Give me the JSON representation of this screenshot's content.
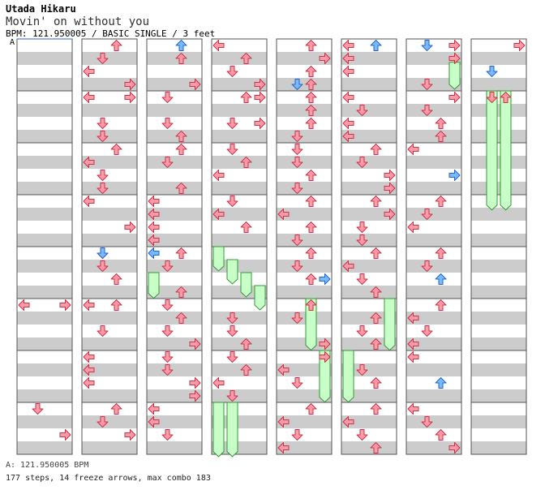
{
  "header": {
    "artist": "Utada Hikaru",
    "title": "Movin' on without you",
    "info": "BPM: 121.950005 / BASIC SINGLE / 3 feet",
    "marker": "A"
  },
  "footer": {
    "bpm_line": "A: 121.950005 BPM",
    "stats_line": "177 steps, 14 freeze arrows, max combo 183"
  },
  "colors": {
    "normal": "#ff9aa8",
    "normal_stroke": "#cc3344",
    "blue": "#7ab8ff",
    "blue_stroke": "#2266cc",
    "freeze": "#c8ffc8",
    "freeze_stroke": "#339933",
    "stripe": "#cccccc"
  },
  "chart_data": {
    "type": "step-chart",
    "columns": 8,
    "measures_per_column": 8,
    "lanes": [
      "left",
      "down",
      "up",
      "right"
    ],
    "notes": [
      {
        "col": 0,
        "m": 5,
        "b": 0,
        "lane": "left"
      },
      {
        "col": 0,
        "m": 5,
        "b": 0,
        "lane": "right"
      },
      {
        "col": 0,
        "m": 7,
        "b": 0,
        "lane": "down"
      },
      {
        "col": 0,
        "m": 7,
        "b": 2,
        "lane": "right"
      },
      {
        "col": 1,
        "m": 0,
        "b": 0,
        "lane": "up"
      },
      {
        "col": 1,
        "m": 0,
        "b": 1,
        "lane": "down"
      },
      {
        "col": 1,
        "m": 0,
        "b": 2,
        "lane": "left"
      },
      {
        "col": 1,
        "m": 0,
        "b": 3,
        "lane": "right"
      },
      {
        "col": 1,
        "m": 1,
        "b": 0,
        "lane": "left"
      },
      {
        "col": 1,
        "m": 1,
        "b": 0,
        "lane": "right"
      },
      {
        "col": 1,
        "m": 1,
        "b": 2,
        "lane": "down"
      },
      {
        "col": 1,
        "m": 1,
        "b": 3,
        "lane": "down"
      },
      {
        "col": 1,
        "m": 2,
        "b": 0,
        "lane": "up"
      },
      {
        "col": 1,
        "m": 2,
        "b": 1,
        "lane": "left"
      },
      {
        "col": 1,
        "m": 2,
        "b": 2,
        "lane": "down"
      },
      {
        "col": 1,
        "m": 2,
        "b": 3,
        "lane": "down"
      },
      {
        "col": 1,
        "m": 3,
        "b": 0,
        "lane": "left"
      },
      {
        "col": 1,
        "m": 3,
        "b": 2,
        "lane": "right"
      },
      {
        "col": 1,
        "m": 4,
        "b": 0,
        "lane": "down"
      },
      {
        "col": 1,
        "m": 4,
        "b": 0,
        "lane": "down",
        "blue": true
      },
      {
        "col": 1,
        "m": 4,
        "b": 1,
        "lane": "down"
      },
      {
        "col": 1,
        "m": 4,
        "b": 2,
        "lane": "up"
      },
      {
        "col": 1,
        "m": 5,
        "b": 0,
        "lane": "up"
      },
      {
        "col": 1,
        "m": 5,
        "b": 0,
        "lane": "left"
      },
      {
        "col": 1,
        "m": 5,
        "b": 2,
        "lane": "down"
      },
      {
        "col": 1,
        "m": 6,
        "b": 0,
        "lane": "left"
      },
      {
        "col": 1,
        "m": 6,
        "b": 1,
        "lane": "left"
      },
      {
        "col": 1,
        "m": 6,
        "b": 2,
        "lane": "left"
      },
      {
        "col": 1,
        "m": 7,
        "b": 0,
        "lane": "up"
      },
      {
        "col": 1,
        "m": 7,
        "b": 1,
        "lane": "down"
      },
      {
        "col": 1,
        "m": 7,
        "b": 2,
        "lane": "right"
      },
      {
        "col": 2,
        "m": 0,
        "b": 0,
        "lane": "up",
        "blue": true
      },
      {
        "col": 2,
        "m": 0,
        "b": 1,
        "lane": "up"
      },
      {
        "col": 2,
        "m": 0,
        "b": 3,
        "lane": "right"
      },
      {
        "col": 2,
        "m": 1,
        "b": 0,
        "lane": "down"
      },
      {
        "col": 2,
        "m": 1,
        "b": 2,
        "lane": "down"
      },
      {
        "col": 2,
        "m": 1,
        "b": 3,
        "lane": "up"
      },
      {
        "col": 2,
        "m": 2,
        "b": 0,
        "lane": "up"
      },
      {
        "col": 2,
        "m": 2,
        "b": 1,
        "lane": "down"
      },
      {
        "col": 2,
        "m": 2,
        "b": 3,
        "lane": "up"
      },
      {
        "col": 2,
        "m": 3,
        "b": 0,
        "lane": "left"
      },
      {
        "col": 2,
        "m": 3,
        "b": 1,
        "lane": "left"
      },
      {
        "col": 2,
        "m": 3,
        "b": 2,
        "lane": "left"
      },
      {
        "col": 2,
        "m": 3,
        "b": 3,
        "lane": "left"
      },
      {
        "col": 2,
        "m": 4,
        "b": 0,
        "lane": "up"
      },
      {
        "col": 2,
        "m": 4,
        "b": 0,
        "lane": "left",
        "blue": true
      },
      {
        "col": 2,
        "m": 4,
        "b": 1,
        "lane": "down"
      },
      {
        "col": 2,
        "m": 4,
        "b": 3,
        "lane": "up"
      },
      {
        "col": 2,
        "m": 5,
        "b": 0,
        "lane": "down"
      },
      {
        "col": 2,
        "m": 5,
        "b": 1,
        "lane": "up"
      },
      {
        "col": 2,
        "m": 5,
        "b": 2,
        "lane": "down"
      },
      {
        "col": 2,
        "m": 5,
        "b": 3,
        "lane": "right"
      },
      {
        "col": 2,
        "m": 6,
        "b": 0,
        "lane": "down"
      },
      {
        "col": 2,
        "m": 6,
        "b": 1,
        "lane": "down"
      },
      {
        "col": 2,
        "m": 6,
        "b": 2,
        "lane": "right"
      },
      {
        "col": 2,
        "m": 6,
        "b": 3,
        "lane": "right"
      },
      {
        "col": 2,
        "m": 7,
        "b": 0,
        "lane": "left"
      },
      {
        "col": 2,
        "m": 7,
        "b": 1,
        "lane": "left"
      },
      {
        "col": 2,
        "m": 7,
        "b": 2,
        "lane": "down"
      },
      {
        "col": 3,
        "m": 0,
        "b": 0,
        "lane": "left"
      },
      {
        "col": 3,
        "m": 0,
        "b": 1,
        "lane": "up"
      },
      {
        "col": 3,
        "m": 0,
        "b": 2,
        "lane": "down"
      },
      {
        "col": 3,
        "m": 0,
        "b": 3,
        "lane": "right"
      },
      {
        "col": 3,
        "m": 1,
        "b": 0,
        "lane": "up"
      },
      {
        "col": 3,
        "m": 1,
        "b": 0,
        "lane": "right"
      },
      {
        "col": 3,
        "m": 1,
        "b": 2,
        "lane": "down"
      },
      {
        "col": 3,
        "m": 1,
        "b": 2,
        "lane": "right"
      },
      {
        "col": 3,
        "m": 2,
        "b": 0,
        "lane": "down"
      },
      {
        "col": 3,
        "m": 2,
        "b": 1,
        "lane": "up"
      },
      {
        "col": 3,
        "m": 2,
        "b": 2,
        "lane": "left"
      },
      {
        "col": 3,
        "m": 3,
        "b": 0,
        "lane": "down"
      },
      {
        "col": 3,
        "m": 3,
        "b": 1,
        "lane": "left"
      },
      {
        "col": 3,
        "m": 3,
        "b": 2,
        "lane": "up"
      },
      {
        "col": 3,
        "m": 5,
        "b": 1,
        "lane": "down"
      },
      {
        "col": 3,
        "m": 5,
        "b": 2,
        "lane": "down"
      },
      {
        "col": 3,
        "m": 5,
        "b": 3,
        "lane": "up"
      },
      {
        "col": 3,
        "m": 6,
        "b": 0,
        "lane": "down"
      },
      {
        "col": 3,
        "m": 6,
        "b": 1,
        "lane": "up"
      },
      {
        "col": 3,
        "m": 6,
        "b": 2,
        "lane": "left"
      },
      {
        "col": 3,
        "m": 6,
        "b": 3,
        "lane": "down"
      },
      {
        "col": 4,
        "m": 0,
        "b": 0,
        "lane": "up"
      },
      {
        "col": 4,
        "m": 0,
        "b": 1,
        "lane": "right"
      },
      {
        "col": 4,
        "m": 0,
        "b": 2,
        "lane": "up"
      },
      {
        "col": 4,
        "m": 0,
        "b": 3,
        "lane": "down",
        "blue": true
      },
      {
        "col": 4,
        "m": 0,
        "b": 3,
        "lane": "up"
      },
      {
        "col": 4,
        "m": 1,
        "b": 0,
        "lane": "up"
      },
      {
        "col": 4,
        "m": 1,
        "b": 1,
        "lane": "up"
      },
      {
        "col": 4,
        "m": 1,
        "b": 2,
        "lane": "up"
      },
      {
        "col": 4,
        "m": 1,
        "b": 3,
        "lane": "down"
      },
      {
        "col": 4,
        "m": 2,
        "b": 0,
        "lane": "down"
      },
      {
        "col": 4,
        "m": 2,
        "b": 1,
        "lane": "down"
      },
      {
        "col": 4,
        "m": 2,
        "b": 2,
        "lane": "up"
      },
      {
        "col": 4,
        "m": 2,
        "b": 3,
        "lane": "down"
      },
      {
        "col": 4,
        "m": 3,
        "b": 0,
        "lane": "up"
      },
      {
        "col": 4,
        "m": 3,
        "b": 1,
        "lane": "left"
      },
      {
        "col": 4,
        "m": 3,
        "b": 2,
        "lane": "up"
      },
      {
        "col": 4,
        "m": 3,
        "b": 3,
        "lane": "down"
      },
      {
        "col": 4,
        "m": 4,
        "b": 0,
        "lane": "up"
      },
      {
        "col": 4,
        "m": 4,
        "b": 1,
        "lane": "down"
      },
      {
        "col": 4,
        "m": 4,
        "b": 2,
        "lane": "right",
        "blue": true
      },
      {
        "col": 4,
        "m": 4,
        "b": 2,
        "lane": "up"
      },
      {
        "col": 4,
        "m": 5,
        "b": 0,
        "lane": "up"
      },
      {
        "col": 4,
        "m": 5,
        "b": 1,
        "lane": "down"
      },
      {
        "col": 4,
        "m": 5,
        "b": 3,
        "lane": "right"
      },
      {
        "col": 4,
        "m": 6,
        "b": 0,
        "lane": "right"
      },
      {
        "col": 4,
        "m": 6,
        "b": 1,
        "lane": "left"
      },
      {
        "col": 4,
        "m": 6,
        "b": 2,
        "lane": "down"
      },
      {
        "col": 4,
        "m": 7,
        "b": 0,
        "lane": "up"
      },
      {
        "col": 4,
        "m": 7,
        "b": 1,
        "lane": "left"
      },
      {
        "col": 4,
        "m": 7,
        "b": 2,
        "lane": "down"
      },
      {
        "col": 4,
        "m": 7,
        "b": 3,
        "lane": "left"
      },
      {
        "col": 5,
        "m": 0,
        "b": 0,
        "lane": "left"
      },
      {
        "col": 5,
        "m": 0,
        "b": 0,
        "lane": "up",
        "blue": true
      },
      {
        "col": 5,
        "m": 0,
        "b": 1,
        "lane": "left"
      },
      {
        "col": 5,
        "m": 0,
        "b": 2,
        "lane": "left"
      },
      {
        "col": 5,
        "m": 1,
        "b": 0,
        "lane": "left"
      },
      {
        "col": 5,
        "m": 1,
        "b": 1,
        "lane": "down"
      },
      {
        "col": 5,
        "m": 1,
        "b": 2,
        "lane": "left"
      },
      {
        "col": 5,
        "m": 1,
        "b": 3,
        "lane": "left"
      },
      {
        "col": 5,
        "m": 2,
        "b": 0,
        "lane": "up"
      },
      {
        "col": 5,
        "m": 2,
        "b": 1,
        "lane": "down"
      },
      {
        "col": 5,
        "m": 2,
        "b": 2,
        "lane": "right"
      },
      {
        "col": 5,
        "m": 2,
        "b": 3,
        "lane": "right"
      },
      {
        "col": 5,
        "m": 3,
        "b": 0,
        "lane": "up"
      },
      {
        "col": 5,
        "m": 3,
        "b": 1,
        "lane": "right"
      },
      {
        "col": 5,
        "m": 3,
        "b": 2,
        "lane": "down"
      },
      {
        "col": 5,
        "m": 3,
        "b": 3,
        "lane": "down"
      },
      {
        "col": 5,
        "m": 4,
        "b": 0,
        "lane": "up"
      },
      {
        "col": 5,
        "m": 4,
        "b": 1,
        "lane": "left"
      },
      {
        "col": 5,
        "m": 4,
        "b": 2,
        "lane": "down"
      },
      {
        "col": 5,
        "m": 4,
        "b": 3,
        "lane": "up"
      },
      {
        "col": 5,
        "m": 5,
        "b": 1,
        "lane": "up"
      },
      {
        "col": 5,
        "m": 5,
        "b": 2,
        "lane": "down"
      },
      {
        "col": 5,
        "m": 5,
        "b": 3,
        "lane": "up"
      },
      {
        "col": 5,
        "m": 6,
        "b": 1,
        "lane": "down"
      },
      {
        "col": 5,
        "m": 6,
        "b": 2,
        "lane": "up"
      },
      {
        "col": 5,
        "m": 7,
        "b": 0,
        "lane": "up"
      },
      {
        "col": 5,
        "m": 7,
        "b": 1,
        "lane": "left"
      },
      {
        "col": 5,
        "m": 7,
        "b": 2,
        "lane": "down"
      },
      {
        "col": 5,
        "m": 7,
        "b": 3,
        "lane": "up"
      },
      {
        "col": 6,
        "m": 0,
        "b": 0,
        "lane": "down",
        "blue": true
      },
      {
        "col": 6,
        "m": 0,
        "b": 0,
        "lane": "right"
      },
      {
        "col": 6,
        "m": 0,
        "b": 1,
        "lane": "right"
      },
      {
        "col": 6,
        "m": 0,
        "b": 3,
        "lane": "down"
      },
      {
        "col": 6,
        "m": 1,
        "b": 0,
        "lane": "right"
      },
      {
        "col": 6,
        "m": 1,
        "b": 1,
        "lane": "down"
      },
      {
        "col": 6,
        "m": 1,
        "b": 2,
        "lane": "up"
      },
      {
        "col": 6,
        "m": 1,
        "b": 3,
        "lane": "up"
      },
      {
        "col": 6,
        "m": 2,
        "b": 0,
        "lane": "left"
      },
      {
        "col": 6,
        "m": 2,
        "b": 2,
        "lane": "right",
        "blue": true
      },
      {
        "col": 6,
        "m": 3,
        "b": 0,
        "lane": "up"
      },
      {
        "col": 6,
        "m": 3,
        "b": 1,
        "lane": "down"
      },
      {
        "col": 6,
        "m": 3,
        "b": 2,
        "lane": "left"
      },
      {
        "col": 6,
        "m": 4,
        "b": 0,
        "lane": "up"
      },
      {
        "col": 6,
        "m": 4,
        "b": 1,
        "lane": "down"
      },
      {
        "col": 6,
        "m": 4,
        "b": 2,
        "lane": "up",
        "blue": true
      },
      {
        "col": 6,
        "m": 5,
        "b": 0,
        "lane": "up"
      },
      {
        "col": 6,
        "m": 5,
        "b": 1,
        "lane": "left"
      },
      {
        "col": 6,
        "m": 5,
        "b": 2,
        "lane": "down"
      },
      {
        "col": 6,
        "m": 5,
        "b": 3,
        "lane": "left"
      },
      {
        "col": 6,
        "m": 6,
        "b": 0,
        "lane": "left"
      },
      {
        "col": 6,
        "m": 6,
        "b": 2,
        "lane": "up",
        "blue": true
      },
      {
        "col": 6,
        "m": 7,
        "b": 0,
        "lane": "left"
      },
      {
        "col": 6,
        "m": 7,
        "b": 1,
        "lane": "down"
      },
      {
        "col": 6,
        "m": 7,
        "b": 2,
        "lane": "up"
      },
      {
        "col": 6,
        "m": 7,
        "b": 3,
        "lane": "right"
      },
      {
        "col": 7,
        "m": 0,
        "b": 0,
        "lane": "right"
      },
      {
        "col": 7,
        "m": 0,
        "b": 2,
        "lane": "down",
        "blue": true
      },
      {
        "col": 7,
        "m": 1,
        "b": 0,
        "lane": "down"
      },
      {
        "col": 7,
        "m": 1,
        "b": 0,
        "lane": "up"
      }
    ],
    "freezes": [
      {
        "col": 2,
        "lane": "left",
        "start": [
          4,
          2
        ],
        "end": [
          4,
          3.6
        ]
      },
      {
        "col": 3,
        "lane": "left",
        "start": [
          4,
          0
        ],
        "end": [
          4,
          1.5
        ]
      },
      {
        "col": 3,
        "lane": "down",
        "start": [
          4,
          1
        ],
        "end": [
          4,
          2.5
        ]
      },
      {
        "col": 3,
        "lane": "up",
        "start": [
          4,
          2
        ],
        "end": [
          4,
          3.5
        ]
      },
      {
        "col": 3,
        "lane": "right",
        "start": [
          4,
          3
        ],
        "end": [
          5,
          0.5
        ]
      },
      {
        "col": 3,
        "lane": "left",
        "start": [
          7,
          0
        ],
        "end": [
          7,
          3.8
        ]
      },
      {
        "col": 3,
        "lane": "down",
        "start": [
          7,
          0
        ],
        "end": [
          7,
          3.8
        ]
      },
      {
        "col": 4,
        "lane": "up",
        "start": [
          5,
          0
        ],
        "end": [
          5,
          3.6
        ]
      },
      {
        "col": 4,
        "lane": "right",
        "start": [
          6,
          0
        ],
        "end": [
          6,
          3.6
        ]
      },
      {
        "col": 5,
        "lane": "left",
        "start": [
          6,
          0
        ],
        "end": [
          6,
          3.6
        ]
      },
      {
        "col": 5,
        "lane": "right",
        "start": [
          5,
          0
        ],
        "end": [
          5,
          3.6
        ]
      },
      {
        "col": 6,
        "lane": "right",
        "start": [
          0,
          1.8
        ],
        "end": [
          0,
          3.5
        ]
      },
      {
        "col": 7,
        "lane": "down",
        "start": [
          1,
          0
        ],
        "end": [
          3,
          0.8
        ]
      },
      {
        "col": 7,
        "lane": "up",
        "start": [
          1,
          0
        ],
        "end": [
          3,
          0.8
        ]
      }
    ]
  }
}
